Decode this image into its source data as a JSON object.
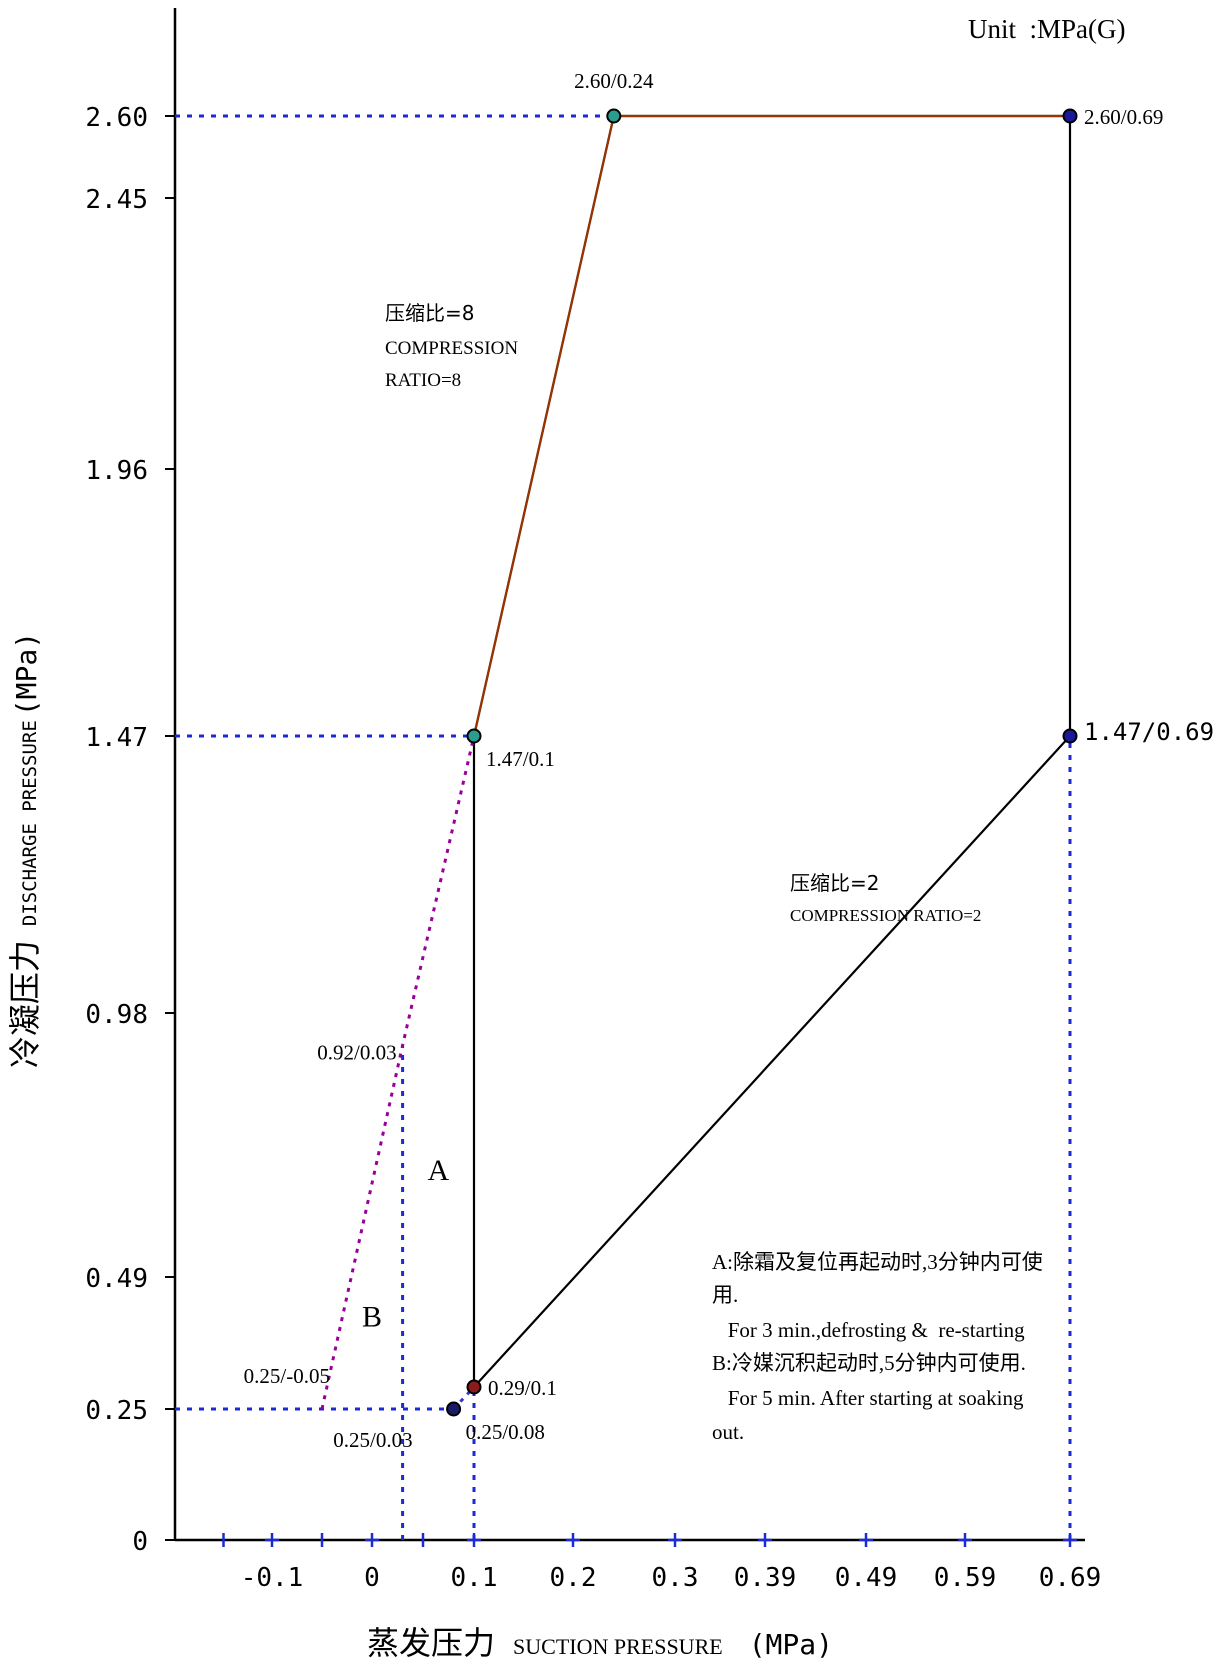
{
  "chart_data": {
    "type": "line",
    "unit_label": "Unit  :MPa(G)",
    "xlabel": {
      "cn": "蒸发压力",
      "en": "SUCTION PRESSURE",
      "unit": "(MPa)"
    },
    "ylabel": {
      "cn": "冷凝压力",
      "en": "DISCHARGE PRESSURE",
      "unit": "(MPa)"
    },
    "x_ticks": [
      {
        "value": -0.1,
        "label": "-0.1"
      },
      {
        "value": 0,
        "label": "0"
      },
      {
        "value": 0.1,
        "label": "0.1"
      },
      {
        "value": 0.2,
        "label": "0.2"
      },
      {
        "value": 0.3,
        "label": "0.3"
      },
      {
        "value": 0.39,
        "label": "0.39"
      },
      {
        "value": 0.49,
        "label": "0.49"
      },
      {
        "value": 0.59,
        "label": "0.59"
      },
      {
        "value": 0.69,
        "label": "0.69"
      }
    ],
    "y_ticks": [
      {
        "value": 0,
        "label": "0"
      },
      {
        "value": 0.25,
        "label": "0.25"
      },
      {
        "value": 0.49,
        "label": "0.49"
      },
      {
        "value": 0.98,
        "label": "0.98"
      },
      {
        "value": 1.47,
        "label": "1.47"
      },
      {
        "value": 1.96,
        "label": "1.96"
      },
      {
        "value": 2.45,
        "label": "2.45"
      },
      {
        "value": 2.6,
        "label": "2.60"
      }
    ],
    "series": [
      {
        "style": "solid",
        "color": "#000000",
        "points": [
          [
            0.1,
            0.29
          ],
          [
            0.1,
            1.47
          ],
          [
            0.24,
            2.6
          ],
          [
            0.69,
            2.6
          ],
          [
            0.69,
            1.47
          ],
          [
            0.1,
            0.29
          ]
        ]
      },
      {
        "style": "solid",
        "color": "#993300",
        "points": [
          [
            0.1,
            1.47
          ],
          [
            0.24,
            2.6
          ],
          [
            0.69,
            2.6
          ]
        ]
      },
      {
        "style": "dotted",
        "color": "#990099",
        "points": [
          [
            -0.05,
            0.25
          ],
          [
            0.03,
            0.92
          ],
          [
            0.1,
            1.47
          ]
        ]
      },
      {
        "style": "dotted",
        "color": "#3333cc",
        "points": [
          [
            0.08,
            0.25
          ],
          [
            0.1,
            0.29
          ]
        ]
      }
    ],
    "guide_lines": [
      {
        "from": [
          -0.2,
          2.6
        ],
        "to": [
          0.24,
          2.6
        ]
      },
      {
        "from": [
          -0.2,
          1.47
        ],
        "to": [
          0.1,
          1.47
        ]
      },
      {
        "from": [
          -0.2,
          0.25
        ],
        "to": [
          0.08,
          0.25
        ]
      },
      {
        "from": [
          0.03,
          0
        ],
        "to": [
          0.03,
          0.92
        ]
      },
      {
        "from": [
          0.1,
          0
        ],
        "to": [
          0.1,
          0.29
        ]
      },
      {
        "from": [
          0.69,
          0
        ],
        "to": [
          0.69,
          1.47
        ]
      }
    ],
    "points": [
      {
        "x": 0.24,
        "y": 2.6,
        "label": "2.60/0.24",
        "color": "#2a9d8f",
        "pos": "above"
      },
      {
        "x": 0.69,
        "y": 2.6,
        "label": "2.60/0.69",
        "color": "#1a1a99",
        "pos": "right"
      },
      {
        "x": 0.1,
        "y": 1.47,
        "label": "1.47/0.1",
        "color": "#2a9d8f",
        "pos": "below-right"
      },
      {
        "x": 0.69,
        "y": 1.47,
        "label": "1.47/0.69",
        "color": "#1a1a99",
        "pos": "right-mono"
      },
      {
        "x": 0.1,
        "y": 0.29,
        "label": "0.29/0.1",
        "color": "#8b1a1a",
        "pos": "right"
      },
      {
        "x": 0.08,
        "y": 0.25,
        "label": "0.25/0.08",
        "color": "#1a1a66",
        "pos": "below-right"
      }
    ],
    "annotations": [
      {
        "text": "0.92/0.03",
        "x": 0.03,
        "y": 0.92,
        "pos": "left"
      },
      {
        "text": "0.25/-0.05",
        "x": -0.05,
        "y": 0.25,
        "pos": "above-left"
      },
      {
        "text": "0.25/0.03",
        "x": 0.03,
        "y": 0.25,
        "pos": "below-left"
      }
    ],
    "regions": [
      {
        "text": "A",
        "x": 0.065,
        "y": 0.67
      },
      {
        "text": "B",
        "x": 0.0,
        "y": 0.4
      }
    ],
    "ratio_labels": [
      {
        "lines": [
          "压缩比=8",
          "COMPRESSION",
          "RATIO=8"
        ]
      },
      {
        "lines": [
          "压缩比=2",
          "COMPRESSION RATIO=2"
        ]
      }
    ],
    "notes": [
      "A:除霜及复位再起动时,3分钟内可使",
      "用.",
      "   For 3 min.,defrosting &  re-starting",
      "B:冷媒沉积起动时,5分钟内可使用.",
      "   For 5 min. After starting at soaking",
      "out."
    ]
  }
}
